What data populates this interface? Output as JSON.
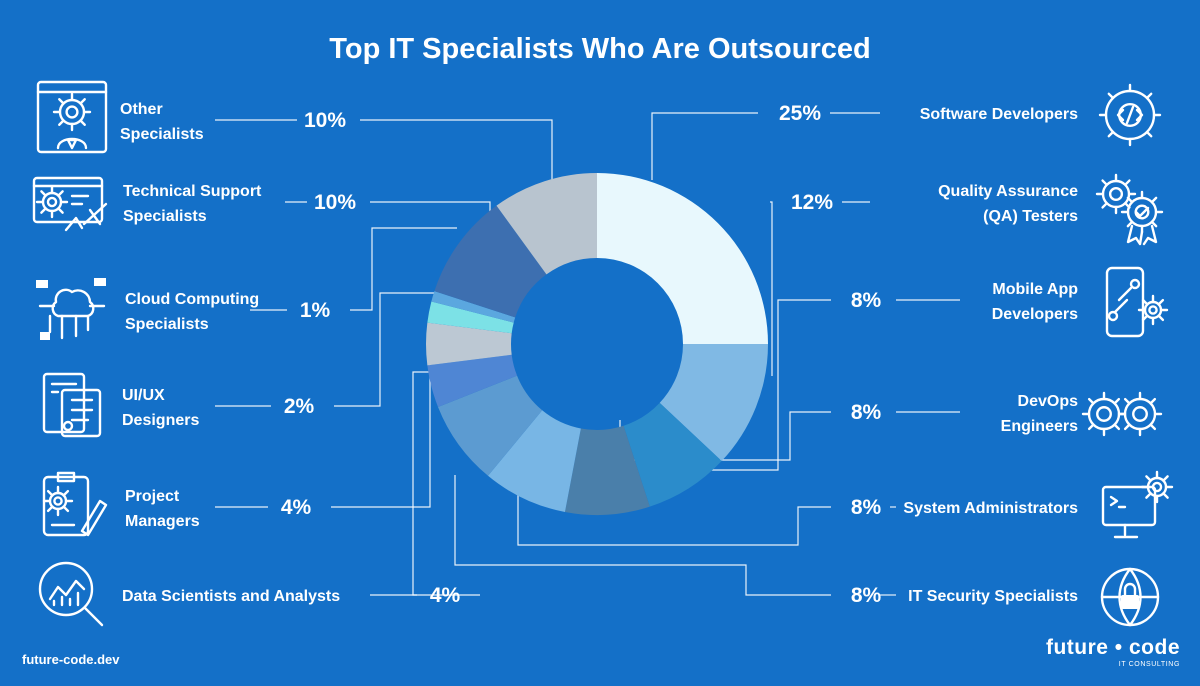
{
  "chart_data": {
    "type": "pie",
    "title": "Top IT Specialists Who Are Outsourced",
    "donut": true,
    "slices": [
      {
        "label": "Software Developers",
        "value": 25,
        "value_label": "25%",
        "color": "#e8f8fd",
        "side": "right",
        "icon": "code-gear-icon"
      },
      {
        "label": "Quality Assurance (QA) Testers",
        "lines": [
          "Quality Assurance",
          "(QA) Testers"
        ],
        "value": 12,
        "value_label": "12%",
        "color": "#80b9e4",
        "side": "right",
        "icon": "gears-badge-icon"
      },
      {
        "label": "Mobile App Developers",
        "lines": [
          "Mobile App",
          "Developers"
        ],
        "value": 8,
        "value_label": "8%",
        "color": "#2b8ccb",
        "side": "right",
        "icon": "mobile-wrench-icon"
      },
      {
        "label": "DevOps Engineers",
        "lines": [
          "DevOps",
          "Engineers"
        ],
        "value": 8,
        "value_label": "8%",
        "color": "#4a7faa",
        "side": "right",
        "icon": "infinity-gears-icon"
      },
      {
        "label": "System Administrators",
        "value": 8,
        "value_label": "8%",
        "color": "#78b6e5",
        "side": "right",
        "icon": "monitor-gear-icon"
      },
      {
        "label": "IT Security Specialists",
        "value": 8,
        "value_label": "8%",
        "color": "#5c9bd1",
        "side": "right",
        "icon": "globe-lock-icon"
      },
      {
        "label": "Data Scientists and Analysts",
        "value": 4,
        "value_label": "4%",
        "color": "#4f86d4",
        "side": "left",
        "icon": "magnifier-chart-icon"
      },
      {
        "label": "Project Managers",
        "lines": [
          "Project",
          "Managers"
        ],
        "value": 4,
        "value_label": "4%",
        "color": "#bcc8d3",
        "side": "left",
        "icon": "clipboard-pen-icon"
      },
      {
        "label": "UI/UX Designers",
        "lines": [
          "UI/UX",
          "Designers"
        ],
        "value": 2,
        "value_label": "2%",
        "color": "#7ce1e6",
        "side": "left",
        "icon": "ui-layout-icon"
      },
      {
        "label": "Cloud Computing Specialists",
        "lines": [
          "Cloud Computing",
          "Specialists"
        ],
        "value": 1,
        "value_label": "1%",
        "color": "#5ba7df",
        "side": "left",
        "icon": "cloud-circuit-icon"
      },
      {
        "label": "Technical Support Specialists",
        "lines": [
          "Technical Support",
          "Specialists"
        ],
        "value": 10,
        "value_label": "10%",
        "color": "#3d6fb0",
        "side": "left",
        "icon": "support-tools-icon"
      },
      {
        "label": "Other Specialists",
        "lines": [
          "Other",
          "Specialists"
        ],
        "value": 10,
        "value_label": "10%",
        "color": "#b8c4cf",
        "side": "left",
        "icon": "specialist-gear-icon"
      }
    ]
  },
  "footer": {
    "website": "future-code.dev",
    "brand_name": "future • code",
    "brand_tagline": "IT CONSULTING"
  }
}
